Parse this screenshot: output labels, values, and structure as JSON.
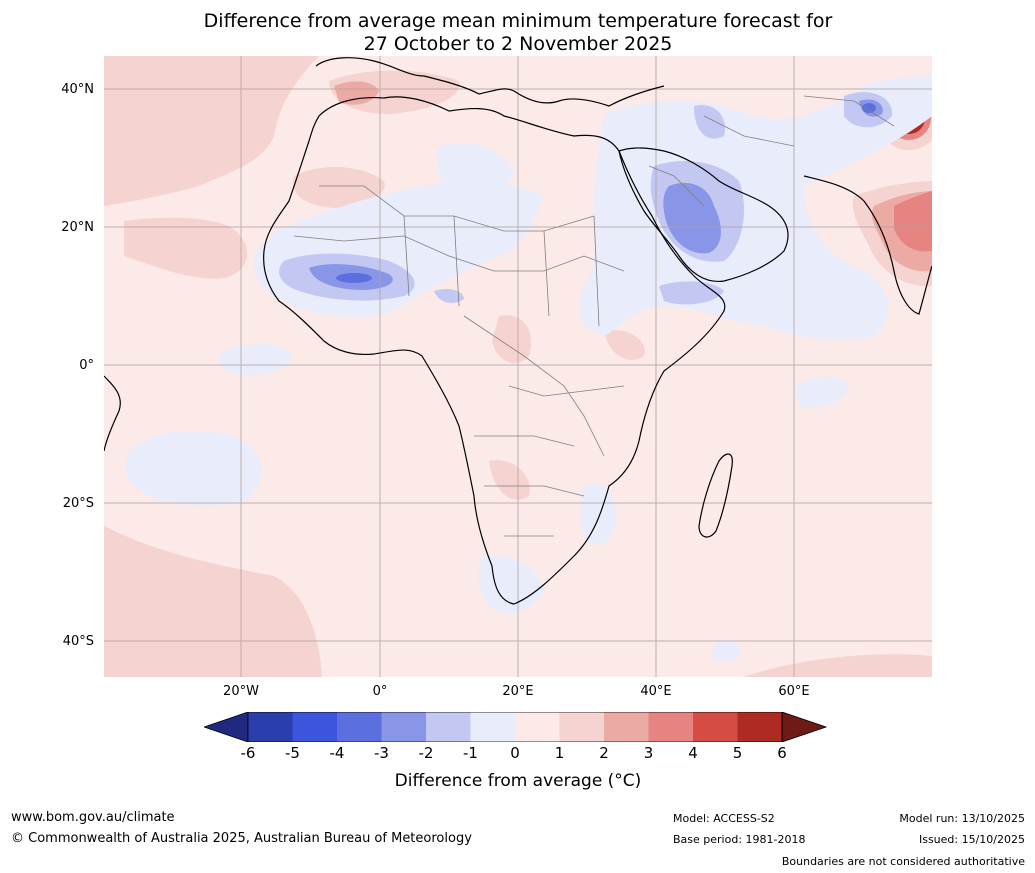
{
  "title": {
    "line1": "Difference from average mean minimum temperature forecast for",
    "line2": "27 October to 2 November 2025"
  },
  "map": {
    "region": "Africa",
    "lat_labels": [
      "40°N",
      "20°N",
      "0°",
      "20°S",
      "40°S"
    ],
    "lon_labels": [
      "20°W",
      "0°",
      "20°E",
      "40°E",
      "60°E"
    ],
    "colors": {
      "ocean_land_background": "#fbeae8",
      "warm_1_2": "#f5d3d0",
      "warm_2_3": "#ecaaa5",
      "warm_3_4": "#e58480",
      "warm_4_5": "#d44c44",
      "warm_5_6": "#ad2b22",
      "warm_gt6": "#6d1b14",
      "cool_0_1": "#e9ecfb",
      "cool_1_2": "#c2c8f2",
      "cool_2_3": "#8996e8",
      "cool_3_4": "#5b6fdf",
      "coastline": "#000000",
      "borders": "#808080",
      "gridlines": "#b0a0a0"
    }
  },
  "colorbar": {
    "title": "Difference from average (°C)",
    "ticks": [
      "-6",
      "-5",
      "-4",
      "-3",
      "-2",
      "-1",
      "0",
      "1",
      "2",
      "3",
      "4",
      "5",
      "6"
    ],
    "segment_colors": [
      "#20287f",
      "#2a3fad",
      "#3b55dc",
      "#5b6fdf",
      "#8996e8",
      "#c2c8f2",
      "#e9ecfb",
      "#fbeae8",
      "#f5d3d0",
      "#ecaaa5",
      "#e58480",
      "#d44c44",
      "#ad2b22",
      "#6d1b14"
    ]
  },
  "footer": {
    "website": "www.bom.gov.au/climate",
    "copyright": "© Commonwealth of Australia 2025, Australian Bureau of Meteorology",
    "model": "Model: ACCESS-S2",
    "base_period": "Base period: 1981-2018",
    "model_run": "Model run: 13/10/2025",
    "issued": "Issued: 15/10/2025",
    "disclaimer": "Boundaries are not considered authoritative"
  }
}
